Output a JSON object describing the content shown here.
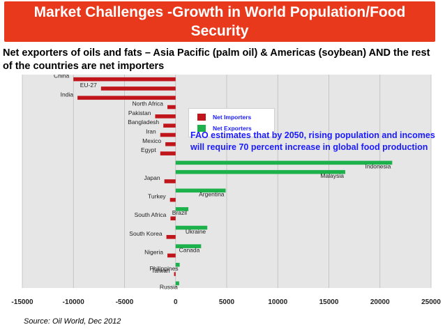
{
  "slide": {
    "title": "Market Challenges -Growth in World Population/Food Security",
    "subtitle": "Net exporters of oils and fats – Asia Pacific (palm oil) & Americas (soybean)  AND the rest of the countries are net importers",
    "source": "Source: Oil World, Dec 2012",
    "annotation": "FAO estimates that by 2050, rising population and incomes will require 70 percent increase in global food production"
  },
  "colors": {
    "title_bg": "#e8391d",
    "importer": "#c0161b",
    "exporter": "#1db14b",
    "plot_bg": "#e6e6e6",
    "annotation": "#1a1aff"
  },
  "chart_data": {
    "type": "bar",
    "orientation": "horizontal",
    "title": "",
    "xlabel": "",
    "ylabel": "",
    "xlim": [
      -15000,
      25000
    ],
    "x_ticks": [
      "-15000",
      "-10000",
      "-5000",
      "0",
      "5000",
      "10000",
      "15000",
      "20000",
      "25000"
    ],
    "grid": true,
    "legend_position": "top-center",
    "series": [
      {
        "name": "Net Importers",
        "color": "#c0161b"
      },
      {
        "name": "Net Exporters",
        "color": "#1db14b"
      }
    ],
    "categories": [
      "China",
      "EU-27",
      "India",
      "North Africa",
      "Pakistan",
      "Bangladesh",
      "Iran",
      "Mexico",
      "Egypt",
      "Indonesia",
      "Malaysia",
      "Japan",
      "Argentina",
      "Turkey",
      "Brazil",
      "South Africa",
      "Ukraine",
      "South Korea",
      "Canada",
      "Nigeria",
      "Philippines",
      "Taiwan",
      "Russia"
    ],
    "values": [
      -10000,
      -7300,
      -9600,
      -800,
      -2000,
      -1200,
      -1500,
      -1000,
      -1500,
      21200,
      16600,
      -1100,
      4900,
      -550,
      1250,
      -500,
      3100,
      -900,
      2500,
      -800,
      400,
      -150,
      350
    ],
    "groups": [
      "Net Importers",
      "Net Importers",
      "Net Importers",
      "Net Importers",
      "Net Importers",
      "Net Importers",
      "Net Importers",
      "Net Importers",
      "Net Importers",
      "Net Exporters",
      "Net Exporters",
      "Net Importers",
      "Net Exporters",
      "Net Importers",
      "Net Exporters",
      "Net Importers",
      "Net Exporters",
      "Net Importers",
      "Net Exporters",
      "Net Importers",
      "Net Exporters",
      "Net Importers",
      "Net Exporters"
    ]
  }
}
